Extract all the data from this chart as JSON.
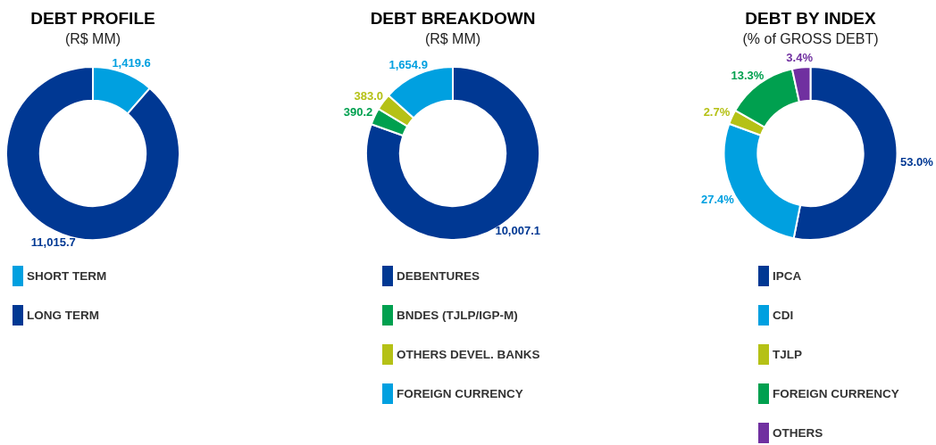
{
  "chart_data": [
    {
      "type": "donut",
      "title": "DEBT PROFILE",
      "subtitle": "(R$ MM)",
      "categories": [
        "SHORT TERM",
        "LONG TERM"
      ],
      "values": [
        1419.6,
        11015.7
      ],
      "colors": [
        "#00a0e0",
        "#003893"
      ],
      "value_labels": [
        "1,419.6",
        "11,015.7"
      ],
      "legend": "bottom"
    },
    {
      "type": "donut",
      "title": "DEBT BREAKDOWN",
      "subtitle": "(R$ MM)",
      "categories": [
        "DEBENTURES",
        "BNDES (TJLP/IGP-M)",
        "OTHERS DEVEL. BANKS",
        "FOREIGN CURRENCY"
      ],
      "values": [
        10007.1,
        390.2,
        383.0,
        1654.9
      ],
      "colors": [
        "#003893",
        "#00a04f",
        "#b5c116",
        "#00a0e0"
      ],
      "value_labels": [
        "10,007.1",
        "390.2",
        "383.0",
        "1,654.9"
      ],
      "legend": "bottom"
    },
    {
      "type": "donut",
      "title": "DEBT BY INDEX",
      "subtitle": "(% of GROSS DEBT)",
      "categories": [
        "IPCA",
        "CDI",
        "TJLP",
        "FOREIGN CURRENCY",
        "OTHERS"
      ],
      "values": [
        53.0,
        27.4,
        2.7,
        13.3,
        3.4
      ],
      "colors": [
        "#003893",
        "#00a0e0",
        "#b5c116",
        "#00a04f",
        "#7030a0"
      ],
      "value_labels": [
        "53.0%",
        "27.4%",
        "2.7%",
        "13.3%",
        "3.4%"
      ],
      "legend": "bottom"
    }
  ]
}
